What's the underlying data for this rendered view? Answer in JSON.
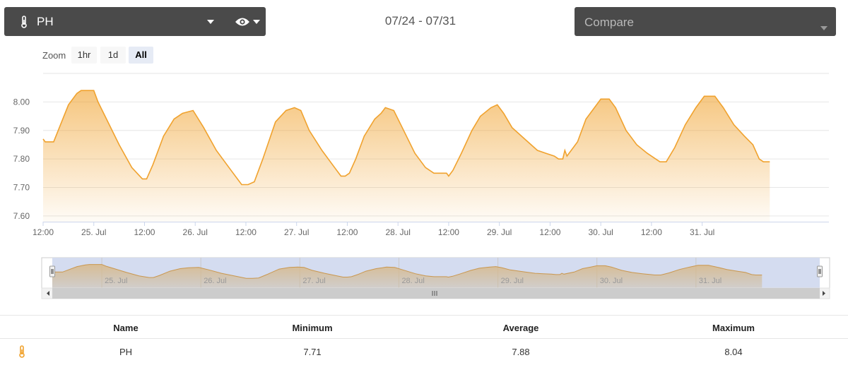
{
  "sensor_select": {
    "label": "PH",
    "icon": "thermometer-icon",
    "view_icon": "eye-icon"
  },
  "date_range": "07/24 - 07/31",
  "compare": {
    "placeholder": "Compare"
  },
  "zoom": {
    "label": "Zoom",
    "options": [
      "1hr",
      "1d",
      "All"
    ],
    "active": "All"
  },
  "chart_data": {
    "type": "area",
    "title": "",
    "xlabel": "",
    "ylabel": "",
    "ylim": [
      7.58,
      8.1
    ],
    "yticks": [
      7.6,
      7.7,
      7.8,
      7.9,
      8.0
    ],
    "ytick_labels": [
      "7.60",
      "7.70",
      "7.80",
      "7.90",
      "8.00"
    ],
    "x_range_hours": [
      0,
      186
    ],
    "x_origin": "07/24 12:00",
    "xticks": [
      {
        "h": 0,
        "label": "12:00"
      },
      {
        "h": 12,
        "label": "25. Jul"
      },
      {
        "h": 24,
        "label": "12:00"
      },
      {
        "h": 36,
        "label": "26. Jul"
      },
      {
        "h": 48,
        "label": "12:00"
      },
      {
        "h": 60,
        "label": "27. Jul"
      },
      {
        "h": 72,
        "label": "12:00"
      },
      {
        "h": 84,
        "label": "28. Jul"
      },
      {
        "h": 96,
        "label": "12:00"
      },
      {
        "h": 108,
        "label": "29. Jul"
      },
      {
        "h": 120,
        "label": "12:00"
      },
      {
        "h": 132,
        "label": "30. Jul"
      },
      {
        "h": 144,
        "label": "12:00"
      },
      {
        "h": 156,
        "label": "31. Jul"
      }
    ],
    "navigator_labels": [
      "25. Jul",
      "26. Jul",
      "27. Jul",
      "28. Jul",
      "29. Jul",
      "30. Jul",
      "31. Jul"
    ],
    "grid": true,
    "legend": "none",
    "color": "#f0a22e",
    "series": [
      {
        "name": "PH",
        "points": [
          [
            0,
            7.87
          ],
          [
            0.5,
            7.86
          ],
          [
            2.5,
            7.86
          ],
          [
            6,
            7.99
          ],
          [
            8,
            8.03
          ],
          [
            9,
            8.04
          ],
          [
            12,
            8.04
          ],
          [
            13,
            8.0
          ],
          [
            15,
            7.94
          ],
          [
            18,
            7.85
          ],
          [
            21,
            7.77
          ],
          [
            23.5,
            7.73
          ],
          [
            24.5,
            7.73
          ],
          [
            26,
            7.78
          ],
          [
            28.5,
            7.88
          ],
          [
            31,
            7.94
          ],
          [
            33,
            7.96
          ],
          [
            35.5,
            7.97
          ],
          [
            38,
            7.91
          ],
          [
            41,
            7.83
          ],
          [
            44.5,
            7.76
          ],
          [
            47,
            7.71
          ],
          [
            48.5,
            7.71
          ],
          [
            50,
            7.72
          ],
          [
            52,
            7.8
          ],
          [
            55,
            7.93
          ],
          [
            57.5,
            7.97
          ],
          [
            59.5,
            7.98
          ],
          [
            61,
            7.97
          ],
          [
            63,
            7.9
          ],
          [
            66,
            7.83
          ],
          [
            69,
            7.77
          ],
          [
            70.5,
            7.74
          ],
          [
            71.5,
            7.74
          ],
          [
            72.5,
            7.75
          ],
          [
            74,
            7.8
          ],
          [
            76,
            7.88
          ],
          [
            78.5,
            7.94
          ],
          [
            80,
            7.96
          ],
          [
            81,
            7.98
          ],
          [
            83,
            7.97
          ],
          [
            85,
            7.91
          ],
          [
            88,
            7.82
          ],
          [
            90.5,
            7.77
          ],
          [
            92.5,
            7.75
          ],
          [
            95.5,
            7.75
          ],
          [
            96,
            7.74
          ],
          [
            97,
            7.76
          ],
          [
            99,
            7.82
          ],
          [
            101.5,
            7.9
          ],
          [
            103.5,
            7.95
          ],
          [
            106,
            7.98
          ],
          [
            107.5,
            7.99
          ],
          [
            109,
            7.96
          ],
          [
            111,
            7.91
          ],
          [
            114,
            7.87
          ],
          [
            117,
            7.83
          ],
          [
            119,
            7.82
          ],
          [
            121,
            7.81
          ],
          [
            122,
            7.8
          ],
          [
            123,
            7.8
          ],
          [
            123.5,
            7.83
          ],
          [
            124,
            7.81
          ],
          [
            126.5,
            7.86
          ],
          [
            128.5,
            7.94
          ],
          [
            130.5,
            7.98
          ],
          [
            132,
            8.01
          ],
          [
            134,
            8.01
          ],
          [
            135.5,
            7.98
          ],
          [
            138,
            7.9
          ],
          [
            140.5,
            7.85
          ],
          [
            143,
            7.82
          ],
          [
            145,
            7.8
          ],
          [
            146,
            7.79
          ],
          [
            147.5,
            7.79
          ],
          [
            149.5,
            7.84
          ],
          [
            152,
            7.92
          ],
          [
            154.5,
            7.98
          ],
          [
            156.5,
            8.02
          ],
          [
            159,
            8.02
          ],
          [
            161,
            7.98
          ],
          [
            163.5,
            7.92
          ],
          [
            166,
            7.88
          ],
          [
            168,
            7.85
          ],
          [
            169.5,
            7.8
          ],
          [
            170.5,
            7.79
          ],
          [
            172,
            7.79
          ]
        ]
      }
    ]
  },
  "stats": {
    "headers": {
      "name": "Name",
      "minimum": "Minimum",
      "average": "Average",
      "maximum": "Maximum"
    },
    "row": {
      "icon": "thermometer-icon",
      "name": "PH",
      "minimum": "7.71",
      "average": "7.88",
      "maximum": "8.04"
    }
  }
}
